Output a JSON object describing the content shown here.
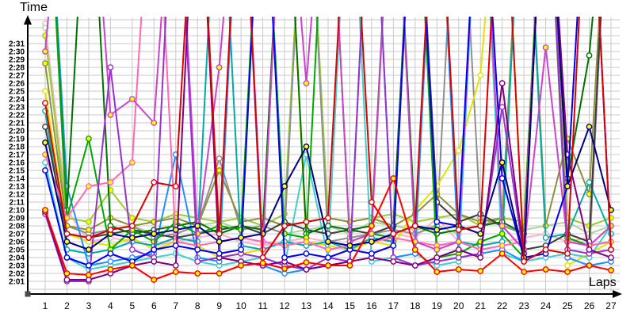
{
  "chart_data": {
    "type": "line",
    "title": "",
    "ylabel": "Time",
    "xlabel": "Laps",
    "x_ticks": [
      1,
      2,
      3,
      4,
      5,
      6,
      7,
      8,
      9,
      10,
      11,
      12,
      13,
      14,
      15,
      16,
      17,
      18,
      19,
      20,
      21,
      22,
      23,
      24,
      25,
      26,
      27
    ],
    "y_tick_labels": [
      "2:01",
      "2:02",
      "2:03",
      "2:04",
      "2:05",
      "2:06",
      "2:07",
      "2:08",
      "2:09",
      "2:10",
      "2:11",
      "2:12",
      "2:13",
      "2:14",
      "2:15",
      "2:16",
      "2:17",
      "2:18",
      "2:19",
      "2:20",
      "2:21",
      "2:22",
      "2:23",
      "2:24",
      "2:25",
      "2:26",
      "2:27",
      "2:28",
      "2:29",
      "2:30",
      "2:31"
    ],
    "y_axis": {
      "min_visible": "2:01",
      "max_visible": "2:31",
      "seconds_per_gridline": 1
    },
    "xlim": [
      1,
      27
    ],
    "grid": true,
    "legend_position": "none",
    "grid_color": "#c9c9c9",
    "axis_color": "#000000",
    "marker_fills": {
      "highlight": "#ffff00",
      "normal": "#ffffff"
    },
    "value_encoding": "lap time in seconds over 2:00 (e.g. 2.5 = 2:02.5); values >= 35 are off-scale spikes drawn beyond the chart top",
    "series": [
      {
        "name": "light-pink",
        "color": "#ffb0c8",
        "marker_fill": "normal",
        "laps": [
          33.5,
          10,
          6,
          6.5,
          6,
          5.5,
          6,
          6.5,
          7,
          6,
          5.5,
          6,
          6.5,
          6,
          5.5,
          6,
          7,
          6.5,
          9,
          6,
          5.5,
          6,
          6.5,
          7,
          6,
          6.5,
          60
        ]
      },
      {
        "name": "pale-green",
        "color": "#aed49a",
        "marker_fill": "normal",
        "laps": [
          33,
          8,
          7,
          7.5,
          8,
          7,
          7.5,
          8,
          8.5,
          7.5,
          8,
          7,
          7.5,
          8,
          7,
          8.5,
          8,
          7.5,
          8,
          7,
          60,
          8,
          7.5,
          8,
          8.5,
          7,
          8
        ]
      },
      {
        "name": "yellow-green",
        "color": "#9acd32",
        "marker_fill": "highlight",
        "laps": [
          32,
          9,
          8.5,
          12.5,
          9,
          8.5,
          9.5,
          9,
          8.5,
          9,
          8,
          9.5,
          60,
          9,
          8.5,
          9,
          9.5,
          8.5,
          9,
          9.5,
          8,
          9,
          8.5,
          60,
          9,
          8,
          9
        ]
      },
      {
        "name": "gray",
        "color": "#909090",
        "marker_fill": "normal",
        "laps": [
          60,
          8,
          7,
          7.5,
          8,
          6.5,
          7,
          8,
          16.5,
          7.5,
          8,
          7,
          60,
          6,
          6.5,
          7,
          7.5,
          7,
          8,
          60,
          9,
          8,
          7,
          60,
          4.5,
          4,
          60
        ]
      },
      {
        "name": "yellow",
        "color": "#e3e300",
        "marker_fill": "normal",
        "laps": [
          25,
          7,
          6,
          5.5,
          6.5,
          5,
          6,
          5.5,
          4,
          4.5,
          5,
          60,
          6,
          5.5,
          5,
          6,
          5.5,
          10,
          13,
          17.5,
          27,
          60,
          4,
          60,
          3,
          4.5,
          6
        ]
      },
      {
        "name": "olive",
        "color": "#8f8f40",
        "marker_fill": "highlight",
        "laps": [
          28.5,
          8,
          7.5,
          9,
          8,
          8.5,
          9,
          8,
          15,
          8.5,
          9,
          8,
          8.5,
          9,
          8.5,
          9,
          8,
          9.5,
          12,
          9.5,
          8.5,
          9,
          60,
          8,
          19,
          12,
          60
        ]
      },
      {
        "name": "turquoise",
        "color": "#40d0d0",
        "marker_fill": "normal",
        "laps": [
          16,
          4,
          2.5,
          3,
          3.5,
          4,
          4.5,
          3.5,
          3,
          3.5,
          4,
          3,
          17,
          4,
          60,
          3.5,
          4,
          4.5,
          3,
          3.5,
          60,
          4.5,
          3.5,
          4,
          4.5,
          4,
          8
        ]
      },
      {
        "name": "dark-cyan",
        "color": "#00aaaa",
        "marker_fill": "normal",
        "laps": [
          22.5,
          5,
          4.5,
          5,
          6,
          5.5,
          6.5,
          6,
          60,
          5.5,
          5,
          6,
          5.5,
          6,
          5,
          6.5,
          6,
          60,
          5.5,
          6,
          5.5,
          6,
          60,
          6.5,
          7,
          13.5,
          7
        ]
      },
      {
        "name": "dodger-blue",
        "color": "#1e90ff",
        "marker_fill": "normal",
        "laps": [
          60,
          13,
          3,
          3.5,
          4,
          4.5,
          17,
          4,
          3.5,
          60,
          3,
          2,
          2.5,
          3,
          3.5,
          60,
          4,
          4.5,
          60,
          4,
          4.5,
          5,
          3.5,
          60,
          4,
          3,
          3.5
        ]
      },
      {
        "name": "dark-gray",
        "color": "#3c3c3c",
        "marker_fill": "normal",
        "laps": [
          20.5,
          7,
          6.5,
          7,
          7.5,
          7,
          6.5,
          7,
          7.5,
          8,
          7,
          8.5,
          7.5,
          7,
          7.5,
          7,
          8,
          60,
          11,
          8.5,
          9.5,
          8,
          5,
          5.5,
          7,
          6,
          60
        ]
      },
      {
        "name": "dark-green",
        "color": "#007000",
        "marker_fill": "normal",
        "laps": [
          60,
          10,
          60,
          8,
          7,
          7.5,
          8,
          8.5,
          7,
          8,
          7.5,
          60,
          7,
          8,
          7.5,
          8,
          60,
          8,
          7,
          7.5,
          8,
          8.5,
          7,
          60,
          14,
          29.5,
          60
        ]
      },
      {
        "name": "green",
        "color": "#00a800",
        "marker_fill": "highlight",
        "laps": [
          60,
          9,
          19,
          5,
          7.5,
          6,
          8.5,
          7,
          8,
          7.5,
          60,
          7,
          6.5,
          60,
          6,
          7,
          6.5,
          60,
          4,
          4.5,
          6,
          7,
          4,
          60,
          6.5,
          5.5,
          6
        ]
      },
      {
        "name": "pink",
        "color": "#ff69b4",
        "marker_fill": "highlight",
        "laps": [
          17,
          9,
          13,
          13.5,
          16,
          60,
          6,
          5.5,
          6,
          6.5,
          6,
          5.5,
          6,
          5,
          5.5,
          6,
          6.5,
          6,
          5.5,
          6,
          5,
          5.5,
          6,
          60,
          6,
          5.5,
          6
        ]
      },
      {
        "name": "magenta",
        "color": "#cc44cc",
        "marker_fill": "highlight",
        "laps": [
          30,
          60,
          60,
          22,
          24,
          21,
          60,
          7,
          28,
          60,
          5,
          60,
          26,
          60,
          6,
          7,
          60,
          6,
          5,
          6,
          60,
          8,
          5,
          30.5,
          6,
          5.5,
          8
        ]
      },
      {
        "name": "violet",
        "color": "#9932cc",
        "marker_fill": "normal",
        "laps": [
          9.5,
          1,
          1,
          28,
          5,
          4,
          60,
          3.5,
          4,
          4.5,
          4,
          3,
          2.5,
          4,
          3.5,
          60,
          4,
          3,
          3.5,
          4,
          4.5,
          23,
          4,
          60,
          5,
          4.5,
          5
        ]
      },
      {
        "name": "purple",
        "color": "#800080",
        "marker_fill": "normal",
        "laps": [
          9.8,
          1.2,
          1.2,
          2,
          3,
          3.5,
          3,
          60,
          4,
          3.5,
          3,
          3.5,
          2.5,
          3,
          3.5,
          4,
          3.5,
          3,
          4,
          5,
          4,
          26,
          4.5,
          60,
          17,
          5,
          4
        ]
      },
      {
        "name": "blue",
        "color": "#0000ee",
        "marker_fill": "normal",
        "laps": [
          15,
          4,
          3,
          4.5,
          3.5,
          5,
          5.5,
          5,
          4.5,
          5,
          60,
          4,
          4.5,
          4,
          5,
          4.5,
          5.5,
          60,
          8.5,
          8,
          60,
          14,
          4,
          4.5,
          13,
          60,
          5
        ]
      },
      {
        "name": "navy",
        "color": "#000080",
        "marker_fill": "highlight",
        "laps": [
          18.5,
          6,
          5,
          7,
          6.5,
          7,
          7.5,
          8,
          6,
          6.5,
          7,
          13,
          18,
          6,
          5.5,
          6,
          7,
          8,
          7.5,
          8,
          7,
          16,
          4,
          60,
          13,
          20.5,
          10
        ]
      },
      {
        "name": "red-2",
        "color": "#dd0000",
        "marker_fill": "normal",
        "laps": [
          23.5,
          7,
          6.5,
          7.5,
          8,
          13.5,
          13,
          60,
          7,
          60,
          4,
          8,
          8.5,
          9,
          60,
          11,
          7,
          8,
          60,
          7.5,
          8,
          60,
          3.5,
          5,
          4.5,
          60,
          5
        ]
      },
      {
        "name": "red-1",
        "color": "#ff0000",
        "marker_fill": "highlight",
        "laps": [
          10,
          2,
          1.8,
          2.5,
          3,
          1.2,
          2.2,
          2,
          2,
          3,
          3.3,
          2.6,
          3.4,
          3,
          3,
          8,
          14,
          5,
          2.2,
          2.5,
          2.3,
          4.5,
          2.2,
          2.5,
          2.2,
          3,
          2.4
        ]
      }
    ]
  }
}
